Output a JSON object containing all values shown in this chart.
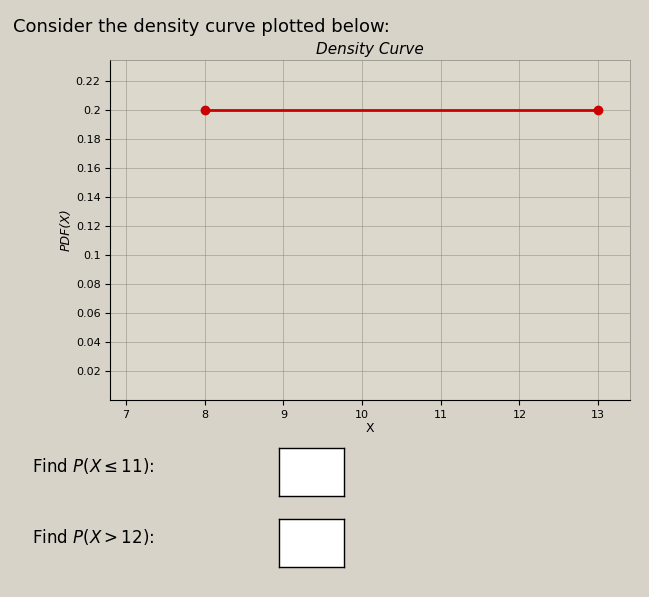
{
  "title": "Density Curve",
  "xlabel": "X",
  "ylabel": "PDF(X)",
  "line_x": [
    8,
    13
  ],
  "line_y": [
    0.2,
    0.2
  ],
  "line_color": "#cc0000",
  "marker_color": "#cc0000",
  "marker_size": 6,
  "xlim": [
    6.8,
    13.4
  ],
  "ylim": [
    0,
    0.235
  ],
  "xticks": [
    7,
    8,
    9,
    10,
    11,
    12,
    13
  ],
  "yticks": [
    0.02,
    0.04,
    0.06,
    0.08,
    0.1,
    0.12,
    0.14,
    0.16,
    0.18,
    0.2,
    0.22
  ],
  "ytick_labels": [
    "0.02",
    "0.04",
    "0.06",
    "0.08",
    "0.1",
    "0.12",
    "0.14",
    "0.16",
    "0.18",
    "0.2",
    "0.22"
  ],
  "xtick_labels": [
    "7",
    "8",
    "9",
    "10",
    "11",
    "12",
    "13"
  ],
  "plot_bg": "#ddd8cc",
  "outer_bg": "#d8d3c8",
  "text_line1": "Find $P(X \\leq 11)$:",
  "text_line2": "Find $P(X > 12)$:",
  "header_text": "Consider the density curve plotted below:",
  "title_fontsize": 11,
  "axis_label_fontsize": 9,
  "tick_fontsize": 8,
  "header_fontsize": 13
}
